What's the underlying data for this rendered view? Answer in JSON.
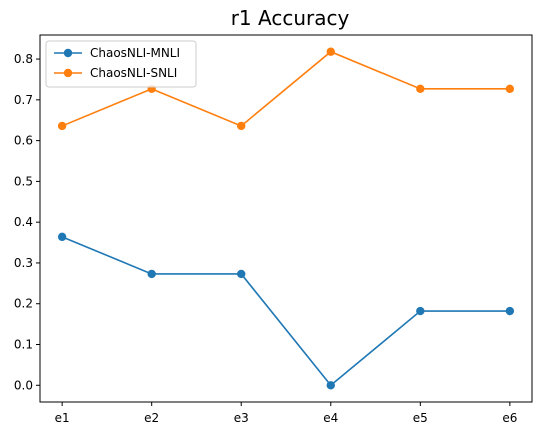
{
  "chart_data": {
    "type": "line",
    "title": "r1 Accuracy",
    "xlabel": "",
    "ylabel": "",
    "categories": [
      "e1",
      "e2",
      "e3",
      "e4",
      "e5",
      "e6"
    ],
    "ylim": [
      -0.041,
      0.859
    ],
    "yticks": [
      0.0,
      0.1,
      0.2,
      0.3,
      0.4,
      0.5,
      0.6,
      0.7,
      0.8
    ],
    "grid": false,
    "legend_position": "top-left",
    "series": [
      {
        "name": "ChaosNLI-MNLI",
        "color": "#1f77b4",
        "marker": "circle",
        "values": [
          0.364,
          0.273,
          0.273,
          0.0,
          0.182,
          0.182
        ]
      },
      {
        "name": "ChaosNLI-SNLI",
        "color": "#ff7f0e",
        "marker": "circle",
        "values": [
          0.636,
          0.727,
          0.636,
          0.818,
          0.727,
          0.727
        ]
      }
    ]
  }
}
